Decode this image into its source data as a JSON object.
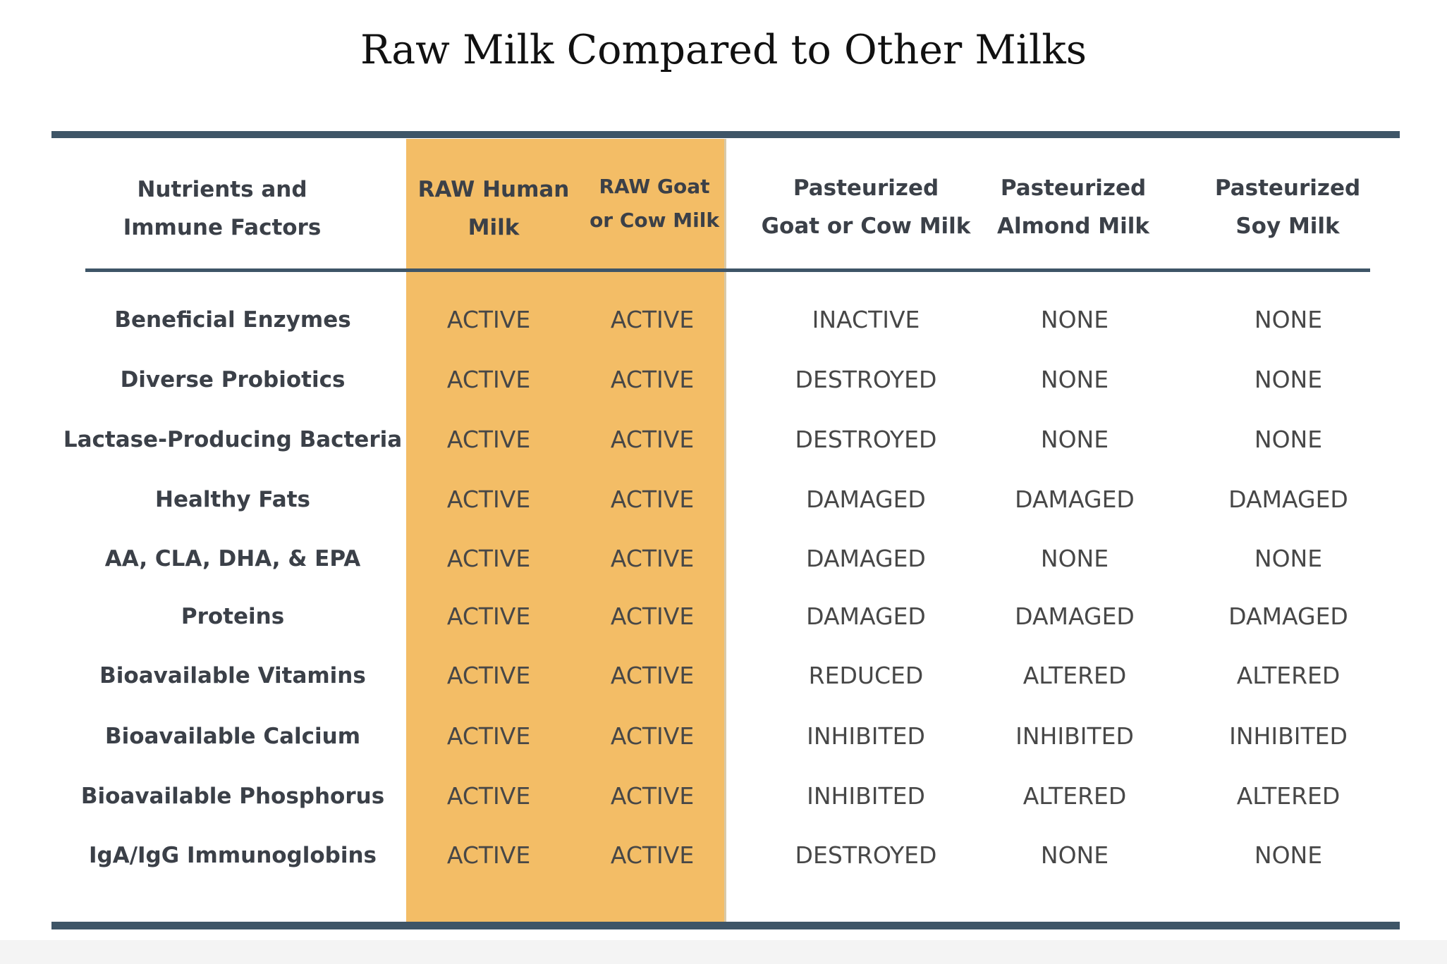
{
  "title": "Raw Milk Compared to Other Milks",
  "columns": {
    "c0": [
      "Nutrients and",
      "Immune Factors"
    ],
    "c1": [
      "RAW Human",
      "Milk"
    ],
    "c2": [
      "RAW Goat",
      "or Cow Milk"
    ],
    "c3": [
      "Pasteurized",
      "Goat or Cow Milk"
    ],
    "c4": [
      "Pasteurized",
      "Almond Milk"
    ],
    "c5": [
      "Pasteurized",
      "Soy Milk"
    ]
  },
  "rows": [
    {
      "label": "Beneficial Enzymes",
      "values": [
        "ACTIVE",
        "ACTIVE",
        "INACTIVE",
        "NONE",
        "NONE"
      ]
    },
    {
      "label": "Diverse Probiotics",
      "values": [
        "ACTIVE",
        "ACTIVE",
        "DESTROYED",
        "NONE",
        "NONE"
      ]
    },
    {
      "label": "Lactase-Producing Bacteria",
      "values": [
        "ACTIVE",
        "ACTIVE",
        "DESTROYED",
        "NONE",
        "NONE"
      ]
    },
    {
      "label": "Healthy Fats",
      "values": [
        "ACTIVE",
        "ACTIVE",
        "DAMAGED",
        "DAMAGED",
        "DAMAGED"
      ]
    },
    {
      "label": "AA, CLA, DHA, & EPA",
      "values": [
        "ACTIVE",
        "ACTIVE",
        "DAMAGED",
        "NONE",
        "NONE"
      ]
    },
    {
      "label": "Proteins",
      "values": [
        "ACTIVE",
        "ACTIVE",
        "DAMAGED",
        "DAMAGED",
        "DAMAGED"
      ]
    },
    {
      "label": "Bioavailable Vitamins",
      "values": [
        "ACTIVE",
        "ACTIVE",
        "REDUCED",
        "ALTERED",
        "ALTERED"
      ]
    },
    {
      "label": "Bioavailable Calcium",
      "values": [
        "ACTIVE",
        "ACTIVE",
        "INHIBITED",
        "INHIBITED",
        "INHIBITED"
      ]
    },
    {
      "label": "Bioavailable Phosphorus",
      "values": [
        "ACTIVE",
        "ACTIVE",
        "INHIBITED",
        "ALTERED",
        "ALTERED"
      ]
    },
    {
      "label": "IgA/IgG Immunoglobins",
      "values": [
        "ACTIVE",
        "ACTIVE",
        "DESTROYED",
        "NONE",
        "NONE"
      ]
    }
  ],
  "colors": {
    "highlight": "#f3bd66",
    "rule": "#3e5567",
    "text": "#474747"
  }
}
